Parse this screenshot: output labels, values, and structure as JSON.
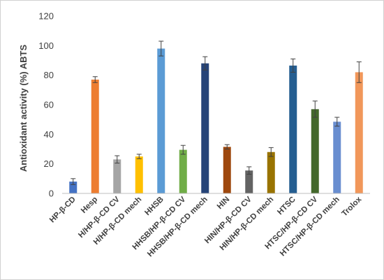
{
  "chart_data": {
    "type": "bar",
    "title": "",
    "xlabel": "",
    "ylabel": "Antioxidant activity (%) ABTS",
    "ylim": [
      0,
      120
    ],
    "yticks": [
      0,
      20,
      40,
      60,
      80,
      100,
      120
    ],
    "grid": false,
    "legend": "none",
    "categories": [
      "HP-β-CD",
      "Hesp",
      "H/HP-β-CD CV",
      "H/HP-β-CD mech",
      "HHSB",
      "HHSB/HP-β-CD CV",
      "HHSB/HP-β-CD mech",
      "HIN",
      "HIN/HP-β-CD CV",
      "HIN/HP-β-CD mech",
      "HTSC",
      "HTSC/HP-β-CD CV",
      "HTSC/HP-β-CD mech",
      "Trolox"
    ],
    "values": [
      8,
      77,
      23,
      25,
      98,
      29.5,
      88,
      31.5,
      15.5,
      28,
      86.5,
      57,
      48.5,
      82
    ],
    "errors": [
      2,
      2,
      2.5,
      1.5,
      5,
      3,
      4.5,
      1.5,
      2.5,
      3,
      4.5,
      5.5,
      3,
      7
    ],
    "colors": [
      "#4472c4",
      "#ed7d31",
      "#a5a5a5",
      "#ffc000",
      "#5b9bd5",
      "#70ad47",
      "#264478",
      "#9e480e",
      "#636363",
      "#997300",
      "#255e91",
      "#43682b",
      "#698ed0",
      "#f1975a"
    ]
  }
}
